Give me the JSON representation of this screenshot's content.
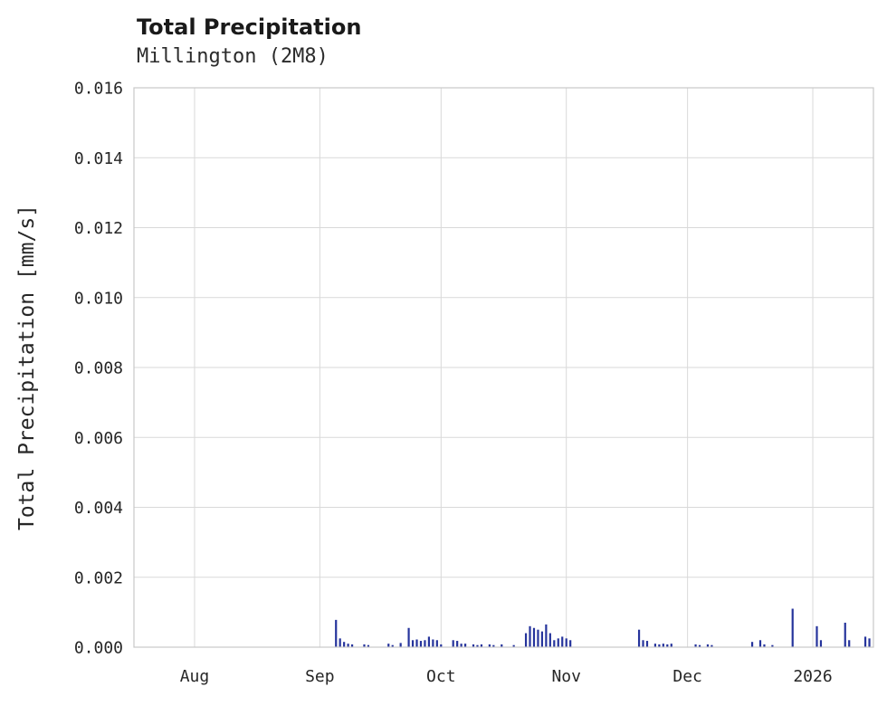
{
  "page": {
    "background": "#ffffff"
  },
  "chart_data": {
    "type": "bar",
    "title": "Total Precipitation",
    "subtitle": "Millington (2M8)",
    "xlabel": "",
    "ylabel": "Total Precipitation [mm/s]",
    "ylim": [
      0,
      0.016
    ],
    "ytick_step": 0.002,
    "ytick_labels": [
      "0.000",
      "0.002",
      "0.004",
      "0.006",
      "0.008",
      "0.010",
      "0.012",
      "0.014",
      "0.016"
    ],
    "x_domain": [
      "2025-07-17",
      "2026-01-16"
    ],
    "xticks": [
      {
        "date": "2025-08-01",
        "label": "Aug"
      },
      {
        "date": "2025-09-01",
        "label": "Sep"
      },
      {
        "date": "2025-10-01",
        "label": "Oct"
      },
      {
        "date": "2025-11-01",
        "label": "Nov"
      },
      {
        "date": "2025-12-01",
        "label": "Dec"
      },
      {
        "date": "2026-01-01",
        "label": "2026"
      }
    ],
    "grid": true,
    "legend": "none",
    "colors": {
      "bar": "#26349c",
      "grid": "#d9d9d9",
      "border": "#c8c8c8",
      "tick_text": "#262626",
      "title_text": "#1a1a1a"
    },
    "series": [
      {
        "name": "Total Precipitation",
        "unit": "mm/s",
        "points": [
          [
            "2025-09-05",
            0.00078
          ],
          [
            "2025-09-06",
            0.00025
          ],
          [
            "2025-09-07",
            0.00015
          ],
          [
            "2025-09-08",
            0.0001
          ],
          [
            "2025-09-09",
            8e-05
          ],
          [
            "2025-09-12",
            8e-05
          ],
          [
            "2025-09-13",
            6e-05
          ],
          [
            "2025-09-18",
            0.0001
          ],
          [
            "2025-09-19",
            6e-05
          ],
          [
            "2025-09-21",
            0.00012
          ],
          [
            "2025-09-23",
            0.00055
          ],
          [
            "2025-09-24",
            0.0002
          ],
          [
            "2025-09-25",
            0.00022
          ],
          [
            "2025-09-26",
            0.00018
          ],
          [
            "2025-09-27",
            0.0002
          ],
          [
            "2025-09-28",
            0.0003
          ],
          [
            "2025-09-29",
            0.00022
          ],
          [
            "2025-09-30",
            0.0002
          ],
          [
            "2025-10-01",
            8e-05
          ],
          [
            "2025-10-04",
            0.0002
          ],
          [
            "2025-10-05",
            0.00018
          ],
          [
            "2025-10-06",
            0.0001
          ],
          [
            "2025-10-07",
            0.0001
          ],
          [
            "2025-10-09",
            8e-05
          ],
          [
            "2025-10-10",
            6e-05
          ],
          [
            "2025-10-11",
            8e-05
          ],
          [
            "2025-10-13",
            8e-05
          ],
          [
            "2025-10-14",
            6e-05
          ],
          [
            "2025-10-16",
            8e-05
          ],
          [
            "2025-10-19",
            6e-05
          ],
          [
            "2025-10-22",
            0.0004
          ],
          [
            "2025-10-23",
            0.0006
          ],
          [
            "2025-10-24",
            0.00055
          ],
          [
            "2025-10-25",
            0.0005
          ],
          [
            "2025-10-26",
            0.00045
          ],
          [
            "2025-10-27",
            0.00065
          ],
          [
            "2025-10-28",
            0.0004
          ],
          [
            "2025-10-29",
            0.0002
          ],
          [
            "2025-10-30",
            0.00025
          ],
          [
            "2025-10-31",
            0.0003
          ],
          [
            "2025-11-01",
            0.00025
          ],
          [
            "2025-11-02",
            0.0002
          ],
          [
            "2025-11-19",
            0.0005
          ],
          [
            "2025-11-20",
            0.0002
          ],
          [
            "2025-11-21",
            0.00018
          ],
          [
            "2025-11-23",
            0.0001
          ],
          [
            "2025-11-24",
            8e-05
          ],
          [
            "2025-11-25",
            0.0001
          ],
          [
            "2025-11-26",
            8e-05
          ],
          [
            "2025-11-27",
            0.0001
          ],
          [
            "2025-12-03",
            8e-05
          ],
          [
            "2025-12-04",
            6e-05
          ],
          [
            "2025-12-06",
            8e-05
          ],
          [
            "2025-12-07",
            6e-05
          ],
          [
            "2025-12-17",
            0.00015
          ],
          [
            "2025-12-19",
            0.0002
          ],
          [
            "2025-12-20",
            8e-05
          ],
          [
            "2025-12-22",
            6e-05
          ],
          [
            "2025-12-27",
            0.0011
          ],
          [
            "2026-01-02",
            0.0006
          ],
          [
            "2026-01-03",
            0.0002
          ],
          [
            "2026-01-09",
            0.0007
          ],
          [
            "2026-01-10",
            0.0002
          ],
          [
            "2026-01-14",
            0.0003
          ],
          [
            "2026-01-15",
            0.00025
          ]
        ]
      }
    ]
  }
}
